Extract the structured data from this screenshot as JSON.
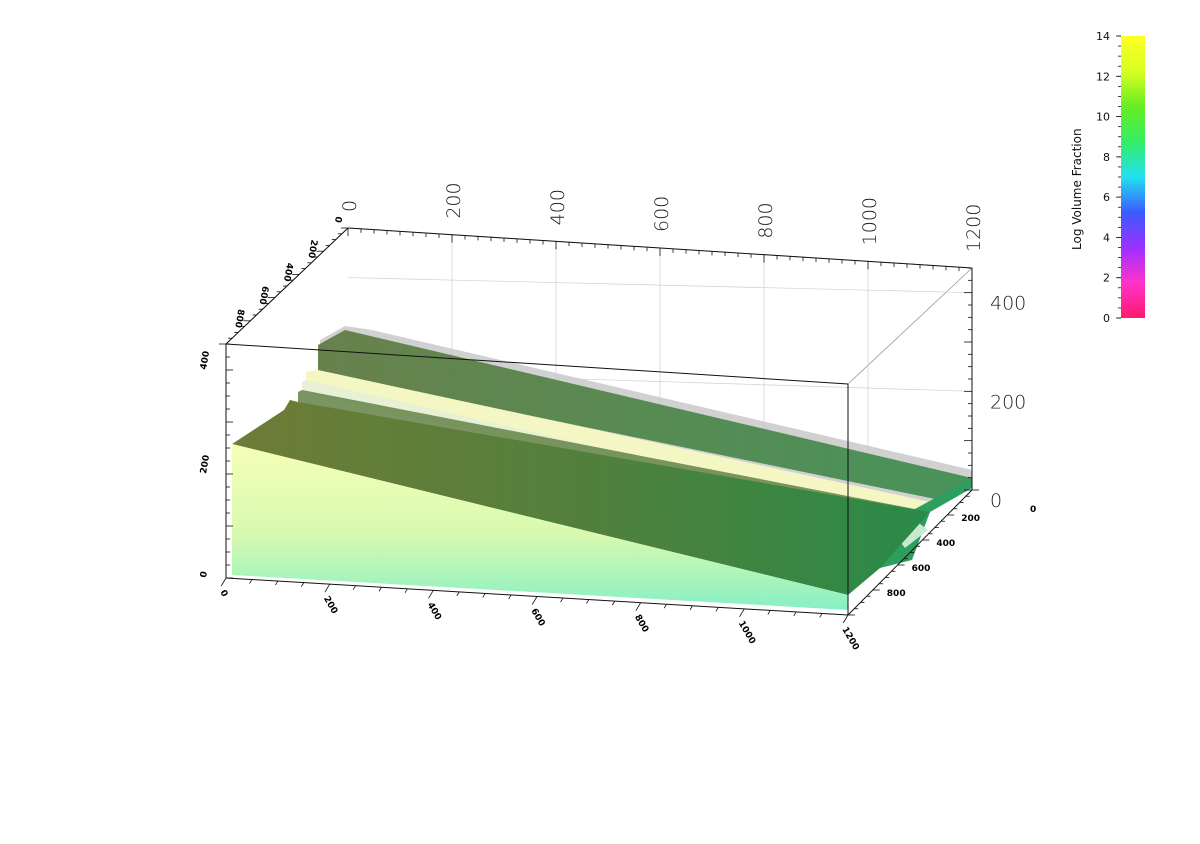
{
  "chart_data": {
    "type": "3d-surface",
    "title": "",
    "colorbar": {
      "label": "Log Volume Fraction",
      "range": [
        0,
        14
      ],
      "ticks": [
        0,
        2,
        4,
        6,
        8,
        10,
        12,
        14
      ],
      "colors": [
        "#ff1a6e",
        "#ff33cc",
        "#9b30ff",
        "#3a5cff",
        "#22e0f0",
        "#33ee66",
        "#66ee22",
        "#d8ff22",
        "#ffff22"
      ]
    },
    "axes": {
      "x": {
        "range": [
          0,
          1200
        ],
        "ticks": [
          "200",
          "400",
          "600",
          "800",
          "1000",
          "1200"
        ],
        "zero_label": "0"
      },
      "y": {
        "range": [
          0,
          1000
        ],
        "ticks": [
          "200",
          "400",
          "600",
          "800"
        ],
        "zero_label": "0"
      },
      "z": {
        "range": [
          0,
          450
        ],
        "ticks": [
          "0",
          "200",
          "400"
        ]
      },
      "front_x_ticks": [
        "200",
        "400",
        "600",
        "800",
        "1000",
        "1200"
      ],
      "front_z_ticks": [
        "0",
        "200",
        "400"
      ],
      "top_y_ticks": [
        "0",
        "200",
        "400",
        "600",
        "800"
      ]
    },
    "surface": {
      "description_colors": {
        "top": "#6b8a3c",
        "side_light": "#f0ffb0",
        "side_base": "#8ef0c0",
        "band": "#f4f8c8",
        "shadow": "#c8c8c8"
      }
    }
  }
}
